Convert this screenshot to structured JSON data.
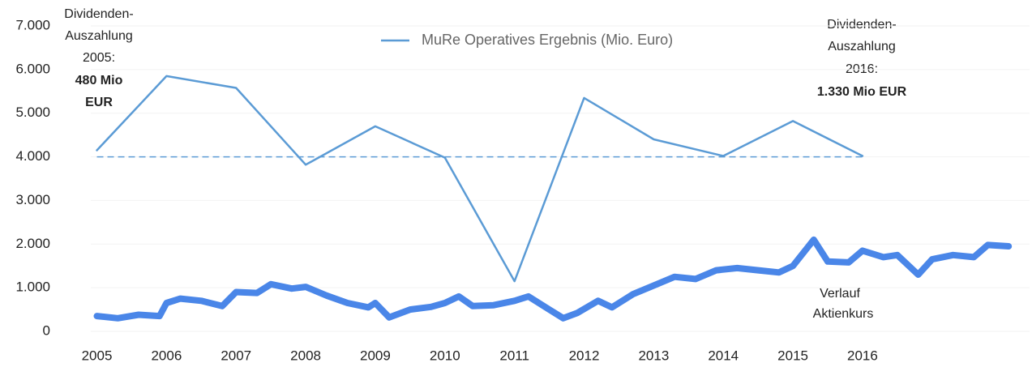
{
  "chart_data": {
    "type": "line",
    "xlim": [
      2004.4,
      2018.4
    ],
    "xticks": [
      2005,
      2006,
      2007,
      2008,
      2009,
      2010,
      2011,
      2012,
      2013,
      2014,
      2015,
      2016
    ],
    "ylim": [
      0,
      7000
    ],
    "yticks": [
      0,
      {
        "value": 1000,
        "label": "1.000"
      },
      {
        "value": 2000,
        "label": "2.000"
      },
      {
        "value": 3000,
        "label": "3.000"
      },
      {
        "value": 4000,
        "label": "4.000"
      },
      {
        "value": 5000,
        "label": "5.000"
      },
      {
        "value": 6000,
        "label": "6.000"
      },
      {
        "value": 7000,
        "label": "7.000"
      }
    ],
    "grid": true,
    "legend": "top",
    "series": [
      {
        "name": "MuRe Operatives Ergebnis (Mio. Euro)",
        "color": "#5b9bd5",
        "width": 2.5,
        "x": [
          2005,
          2006,
          2007,
          2008,
          2009,
          2010,
          2011,
          2012,
          2013,
          2014,
          2015,
          2016
        ],
        "values": [
          4150,
          5850,
          5580,
          3820,
          4700,
          3980,
          1150,
          5350,
          4400,
          4020,
          4820,
          4020
        ]
      },
      {
        "color": "#4a86e8",
        "width": 8,
        "x": [
          2005.0,
          2005.3,
          2005.6,
          2005.9,
          2006.0,
          2006.2,
          2006.5,
          2006.8,
          2007.0,
          2007.3,
          2007.5,
          2007.8,
          2008.0,
          2008.3,
          2008.6,
          2008.9,
          2009.0,
          2009.2,
          2009.5,
          2009.8,
          2010.0,
          2010.2,
          2010.4,
          2010.7,
          2011.0,
          2011.2,
          2011.5,
          2011.7,
          2011.9,
          2012.2,
          2012.4,
          2012.7,
          2013.0,
          2013.3,
          2013.6,
          2013.9,
          2014.2,
          2014.5,
          2014.8,
          2015.0,
          2015.3,
          2015.5,
          2015.8,
          2016.0,
          2016.3,
          2016.5,
          2016.8,
          2017.0,
          2017.3,
          2017.6,
          2017.8,
          2018.1
        ],
        "values": [
          350,
          300,
          380,
          350,
          650,
          750,
          700,
          580,
          900,
          880,
          1080,
          980,
          1020,
          820,
          650,
          550,
          650,
          320,
          500,
          560,
          650,
          800,
          580,
          600,
          700,
          800,
          500,
          300,
          420,
          700,
          550,
          850,
          1050,
          1250,
          1200,
          1400,
          1450,
          1400,
          1350,
          1500,
          2100,
          1600,
          1580,
          1850,
          1700,
          1750,
          1300,
          1650,
          1750,
          1700,
          1980,
          1950
        ]
      }
    ],
    "reference_lines": [
      {
        "y": 4000,
        "x": [
          2005,
          2016
        ],
        "color": "#5b9bd5",
        "dash": true
      }
    ],
    "annotations": {
      "left": [
        "Dividenden-",
        "Auszahlung",
        "2005:",
        "480 Mio",
        "EUR"
      ],
      "right": [
        "Dividenden-",
        "Auszahlung",
        "2016:",
        "1.330 Mio EUR"
      ],
      "stock": [
        "Verlauf",
        "Aktienkurs"
      ]
    }
  }
}
